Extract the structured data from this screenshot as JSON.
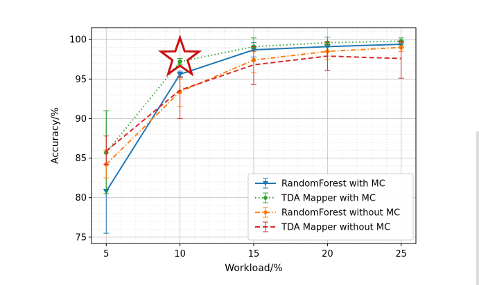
{
  "chart_data": {
    "type": "line",
    "xlabel": "Workload/%",
    "ylabel": "Accuracy/%",
    "x": [
      5,
      10,
      15,
      20,
      25
    ],
    "xticks": [
      "5",
      "10",
      "15",
      "20",
      "25"
    ],
    "yticks": [
      "75",
      "80",
      "85",
      "90",
      "95",
      "100"
    ],
    "xlim": [
      4,
      26
    ],
    "ylim": [
      74.2,
      101.5
    ],
    "grid": true,
    "legend_position": "lower-right",
    "annotation": {
      "type": "star",
      "x": 10,
      "y": 97.0,
      "color": "#cc1111"
    },
    "series": [
      {
        "name": "RandomForest with MC",
        "color": "#1f77b4",
        "style": "solid",
        "marker": "triangle-down",
        "values": [
          80.8,
          95.6,
          98.7,
          99.1,
          99.4
        ],
        "err_low": [
          75.5,
          95.2,
          97.8,
          98.5,
          99.0
        ],
        "err_high": [
          91.0,
          96.0,
          99.6,
          99.7,
          99.8
        ]
      },
      {
        "name": "TDA Mapper with MC",
        "color": "#2ca02c",
        "style": "dotted",
        "marker": "circle",
        "values": [
          85.7,
          97.2,
          99.1,
          99.6,
          99.8
        ],
        "err_low": [
          80.5,
          96.8,
          98.5,
          99.2,
          99.3
        ],
        "err_high": [
          91.0,
          97.6,
          100.2,
          100.3,
          100.2
        ]
      },
      {
        "name": "RandomForest without MC",
        "color": "#ff7f0e",
        "style": "dashdot",
        "marker": "circle",
        "values": [
          84.2,
          93.4,
          97.4,
          98.5,
          99.0
        ],
        "err_low": [
          82.5,
          91.5,
          95.8,
          97.5,
          98.5
        ],
        "err_high": [
          86.0,
          95.0,
          98.5,
          99.5,
          99.6
        ]
      },
      {
        "name": "TDA Mapper without MC",
        "color": "#d62728",
        "style": "dashed",
        "marker": "none",
        "values": [
          85.9,
          93.6,
          96.8,
          97.9,
          97.6
        ],
        "err_low": [
          84.2,
          90.0,
          94.3,
          96.1,
          95.1
        ],
        "err_high": [
          87.8,
          95.3,
          99.1,
          99.7,
          99.8
        ]
      }
    ]
  }
}
